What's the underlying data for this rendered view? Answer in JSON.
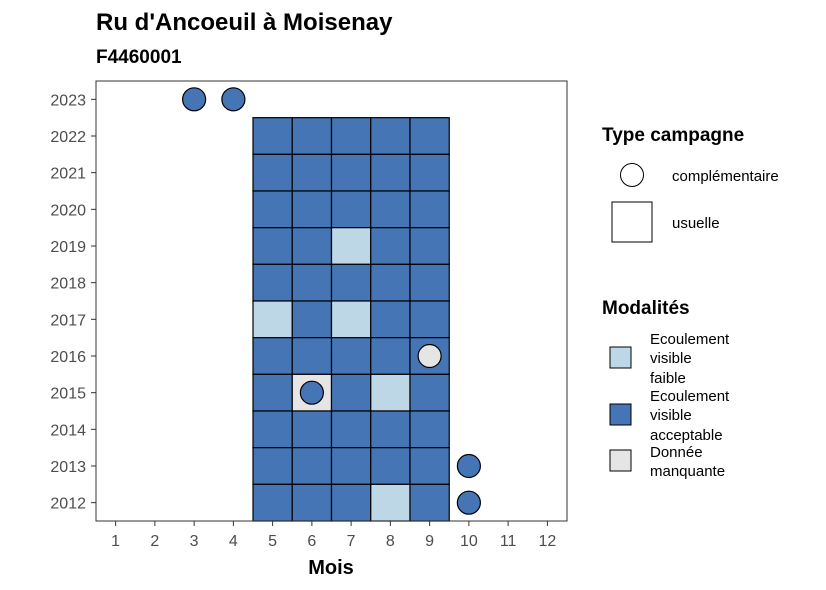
{
  "chart_data": {
    "type": "heatmap",
    "title": "Ru d'Ancoeuil à Moisenay",
    "subtitle": "F4460001",
    "xlabel": "Mois",
    "ylabel": "",
    "x_ticks": [
      1,
      2,
      3,
      4,
      5,
      6,
      7,
      8,
      9,
      10,
      11,
      12
    ],
    "y_ticks": [
      2012,
      2013,
      2014,
      2015,
      2016,
      2017,
      2018,
      2019,
      2020,
      2021,
      2022,
      2023
    ],
    "xlim": [
      0.5,
      12.5
    ],
    "ylim": [
      2011.5,
      2023.5
    ],
    "grid": false,
    "legend": {
      "campaign_title": "Type campagne",
      "campaign_items": [
        {
          "key": "complementaire",
          "label": "complémentaire",
          "shape": "circle"
        },
        {
          "key": "usuelle",
          "label": "usuelle",
          "shape": "square"
        }
      ],
      "modalites_title": "Modalités",
      "modalites_items": [
        {
          "key": "faible",
          "lines": [
            "Ecoulement",
            "visible",
            "faible"
          ],
          "color": "#bdd7e7"
        },
        {
          "key": "acceptable",
          "lines": [
            "Ecoulement",
            "visible",
            "acceptable"
          ],
          "color": "#4575b4"
        },
        {
          "key": "manquante",
          "lines": [
            "Donnée",
            "manquante"
          ],
          "color": "#e5e5e5"
        }
      ]
    },
    "colors": {
      "faible": "#bdd7e7",
      "acceptable": "#4575b4",
      "manquante": "#e5e5e5"
    },
    "usuelle": [
      {
        "year": 2022,
        "values": {
          "5": "acceptable",
          "6": "acceptable",
          "7": "acceptable",
          "8": "acceptable",
          "9": "acceptable"
        }
      },
      {
        "year": 2021,
        "values": {
          "5": "acceptable",
          "6": "acceptable",
          "7": "acceptable",
          "8": "acceptable",
          "9": "acceptable"
        }
      },
      {
        "year": 2020,
        "values": {
          "5": "acceptable",
          "6": "acceptable",
          "7": "acceptable",
          "8": "acceptable",
          "9": "acceptable"
        }
      },
      {
        "year": 2019,
        "values": {
          "5": "acceptable",
          "6": "acceptable",
          "7": "faible",
          "8": "acceptable",
          "9": "acceptable"
        }
      },
      {
        "year": 2018,
        "values": {
          "5": "acceptable",
          "6": "acceptable",
          "7": "acceptable",
          "8": "acceptable",
          "9": "acceptable"
        }
      },
      {
        "year": 2017,
        "values": {
          "5": "faible",
          "6": "acceptable",
          "7": "faible",
          "8": "acceptable",
          "9": "acceptable"
        }
      },
      {
        "year": 2016,
        "values": {
          "5": "acceptable",
          "6": "acceptable",
          "7": "acceptable",
          "8": "acceptable",
          "9": "acceptable"
        }
      },
      {
        "year": 2015,
        "values": {
          "5": "acceptable",
          "6": "manquante",
          "7": "acceptable",
          "8": "faible",
          "9": "acceptable"
        }
      },
      {
        "year": 2014,
        "values": {
          "5": "acceptable",
          "6": "acceptable",
          "7": "acceptable",
          "8": "acceptable",
          "9": "acceptable"
        }
      },
      {
        "year": 2013,
        "values": {
          "5": "acceptable",
          "6": "acceptable",
          "7": "acceptable",
          "8": "acceptable",
          "9": "acceptable"
        }
      },
      {
        "year": 2012,
        "values": {
          "5": "acceptable",
          "6": "acceptable",
          "7": "acceptable",
          "8": "faible",
          "9": "acceptable"
        }
      }
    ],
    "complementaire": [
      {
        "year": 2023,
        "month": 3,
        "value": "acceptable"
      },
      {
        "year": 2023,
        "month": 4,
        "value": "acceptable"
      },
      {
        "year": 2016,
        "month": 9,
        "value": "manquante"
      },
      {
        "year": 2015,
        "month": 6,
        "value": "acceptable"
      },
      {
        "year": 2013,
        "month": 10,
        "value": "acceptable"
      },
      {
        "year": 2012,
        "month": 10,
        "value": "acceptable"
      }
    ]
  }
}
